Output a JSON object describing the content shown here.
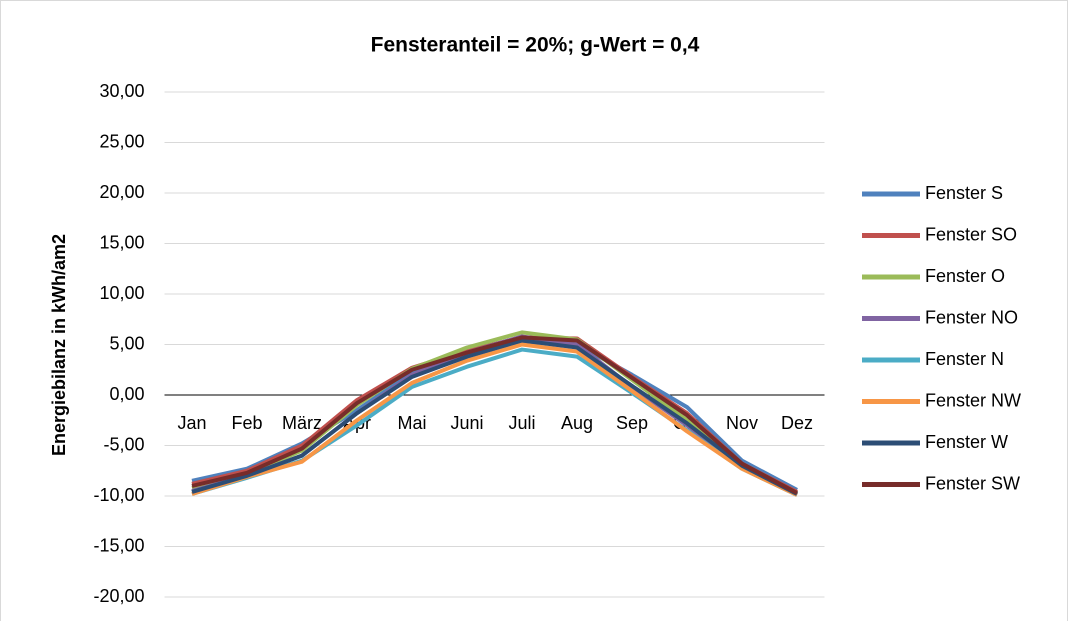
{
  "chart_data": {
    "type": "line",
    "title": "Fensteranteil = 20%; g-Wert = 0,4",
    "ylabel": "Energiebilanz in kWh/am2",
    "categories": [
      "Jan",
      "Feb",
      "März",
      "Apr",
      "Mai",
      "Juni",
      "Juli",
      "Aug",
      "Sep",
      "Okt",
      "Nov",
      "Dez"
    ],
    "series": [
      {
        "name": "Fenster S",
        "color": "#4f81bd",
        "values": [
          -8.5,
          -7.3,
          -4.8,
          -1.5,
          2.2,
          4.0,
          5.3,
          5.0,
          2.0,
          -1.2,
          -6.5,
          -9.4
        ]
      },
      {
        "name": "Fenster SO",
        "color": "#c0504d",
        "values": [
          -8.8,
          -7.5,
          -5.0,
          -0.5,
          2.7,
          4.4,
          5.7,
          5.6,
          1.8,
          -1.8,
          -6.8,
          -9.6
        ]
      },
      {
        "name": "Fenster O",
        "color": "#9bbb59",
        "values": [
          -9.2,
          -7.8,
          -5.5,
          -1.0,
          2.6,
          4.7,
          6.2,
          5.5,
          1.5,
          -2.5,
          -7.0,
          -9.8
        ]
      },
      {
        "name": "Fenster NO",
        "color": "#8064a2",
        "values": [
          -9.5,
          -8.0,
          -6.0,
          -1.8,
          2.0,
          4.2,
          5.8,
          5.0,
          0.8,
          -3.0,
          -7.2,
          -9.9
        ]
      },
      {
        "name": "Fenster N",
        "color": "#4bacc6",
        "values": [
          -9.8,
          -8.2,
          -6.5,
          -3.0,
          0.8,
          2.8,
          4.5,
          3.8,
          0.2,
          -3.5,
          -7.3,
          -9.9
        ]
      },
      {
        "name": "Fenster NW",
        "color": "#f79646",
        "values": [
          -9.8,
          -8.1,
          -6.6,
          -2.5,
          1.2,
          3.4,
          5.0,
          4.3,
          0.4,
          -3.6,
          -7.3,
          -9.9
        ]
      },
      {
        "name": "Fenster W",
        "color": "#2c4d75",
        "values": [
          -9.6,
          -8.0,
          -6.0,
          -1.8,
          1.8,
          3.8,
          5.4,
          4.7,
          0.9,
          -2.8,
          -7.0,
          -9.8
        ]
      },
      {
        "name": "Fenster SW",
        "color": "#772c2a",
        "values": [
          -9.0,
          -7.7,
          -5.3,
          -0.8,
          2.5,
          4.2,
          5.7,
          5.4,
          1.7,
          -2.0,
          -6.8,
          -9.7
        ]
      }
    ],
    "ylim": [
      -20,
      30
    ],
    "yticks": [
      {
        "value": -20,
        "label": "-20,00"
      },
      {
        "value": -15,
        "label": "-15,00"
      },
      {
        "value": -10,
        "label": "-10,00"
      },
      {
        "value": -5,
        "label": "-5,00"
      },
      {
        "value": 0,
        "label": "0,00"
      },
      {
        "value": 5,
        "label": "5,00"
      },
      {
        "value": 10,
        "label": "10,00"
      },
      {
        "value": 15,
        "label": "15,00"
      },
      {
        "value": 20,
        "label": "20,00"
      },
      {
        "value": 25,
        "label": "25,00"
      },
      {
        "value": 30,
        "label": "30,00"
      }
    ],
    "grid": true,
    "legend": "right"
  }
}
